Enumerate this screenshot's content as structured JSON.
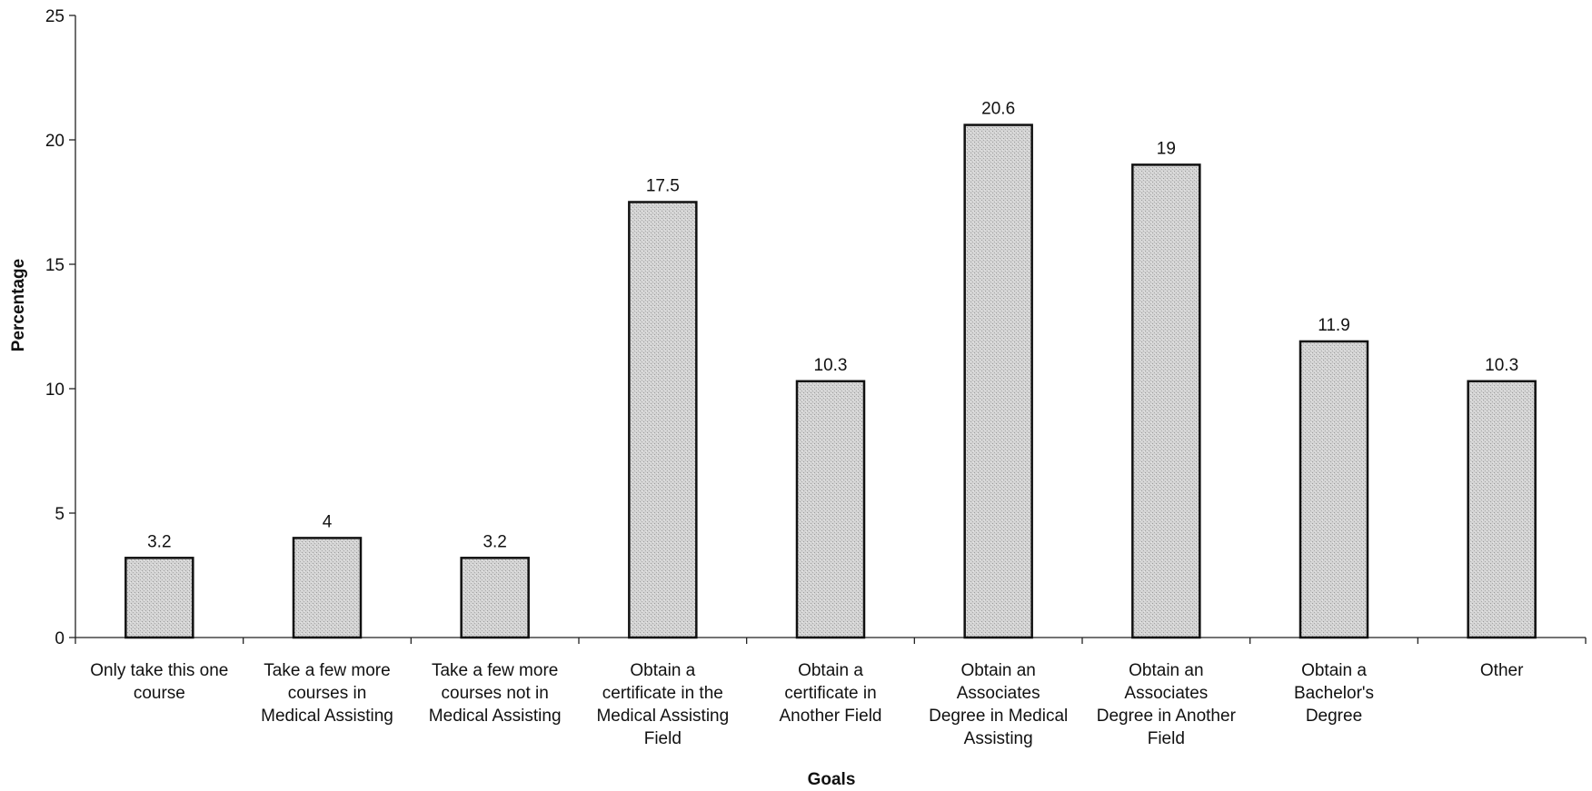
{
  "chart_data": {
    "type": "bar",
    "categories": [
      [
        "Only take this one",
        "course"
      ],
      [
        "Take a few more",
        "courses in",
        "Medical Assisting"
      ],
      [
        "Take a few more",
        "courses not in",
        "Medical Assisting"
      ],
      [
        "Obtain a",
        "certificate in the",
        "Medical Assisting",
        "Field"
      ],
      [
        "Obtain a",
        "certificate in",
        "Another Field"
      ],
      [
        "Obtain an",
        "Associates",
        "Degree in Medical",
        "Assisting"
      ],
      [
        "Obtain an",
        "Associates",
        "Degree in Another",
        "Field"
      ],
      [
        "Obtain a",
        "Bachelor's",
        "Degree"
      ],
      [
        "Other"
      ]
    ],
    "values": [
      3.2,
      4,
      3.2,
      17.5,
      10.3,
      20.6,
      19,
      11.9,
      10.3
    ],
    "value_labels": [
      "3.2",
      "4",
      "3.2",
      "17.5",
      "10.3",
      "20.6",
      "19",
      "11.9",
      "10.3"
    ],
    "xlabel": "Goals",
    "ylabel": "Percentage",
    "ylim": [
      0,
      25
    ],
    "yticks": [
      "0",
      "5",
      "10",
      "15",
      "20",
      "25"
    ],
    "ytick_values": [
      0,
      5,
      10,
      15,
      20,
      25
    ],
    "grid": false,
    "legend": "none",
    "bar_fill": "#cfcfcf",
    "bar_edge": "#111111"
  }
}
